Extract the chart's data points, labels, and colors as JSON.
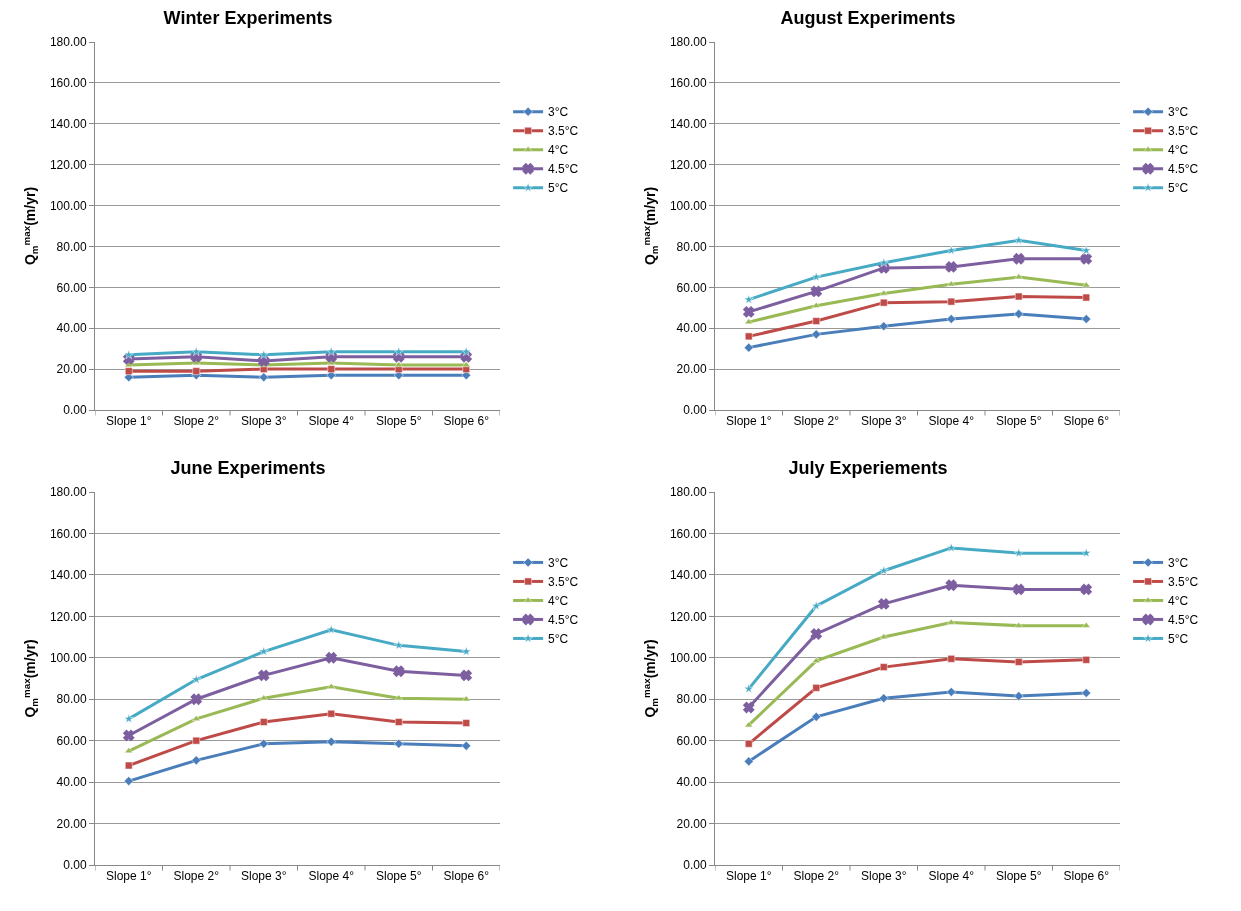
{
  "chart_data": [
    {
      "type": "line",
      "title": "Winter Experiments",
      "ylabel": "Q$_{m}$$^{max}$(m/yr)",
      "categories": [
        "Slope 1°",
        "Slope 2°",
        "Slope 3°",
        "Slope 4°",
        "Slope 5°",
        "Slope 6°"
      ],
      "ylim": [
        0,
        180
      ],
      "yticks": [
        {
          "value": 0,
          "label": "0.00"
        },
        {
          "value": 20,
          "label": "20.00"
        },
        {
          "value": 40,
          "label": "40.00"
        },
        {
          "value": 60,
          "label": "60.00"
        },
        {
          "value": 80,
          "label": "80.00"
        },
        {
          "value": 100,
          "label": "100.00"
        },
        {
          "value": 120,
          "label": "120.00"
        },
        {
          "value": 140,
          "label": "140.00"
        },
        {
          "value": 160,
          "label": "160.00"
        },
        {
          "value": 180,
          "label": "180.00"
        }
      ],
      "grid": "y",
      "legend": "right",
      "series": [
        {
          "name": "3°C",
          "color": "#4a7ebb",
          "marker": "diamond",
          "values": [
            16,
            17,
            16,
            17,
            17,
            17
          ]
        },
        {
          "name": "3.5°C",
          "color": "#be4b48",
          "marker": "square",
          "values": [
            19,
            19,
            20,
            20,
            20,
            20
          ]
        },
        {
          "name": "4°C",
          "color": "#98b954",
          "marker": "triangle",
          "values": [
            22,
            23,
            22,
            23,
            22,
            22
          ]
        },
        {
          "name": "4.5°C",
          "color": "#7d5fa0",
          "marker": "cross",
          "values": [
            25,
            26,
            24,
            26,
            26,
            26
          ]
        },
        {
          "name": "5°C",
          "color": "#46aac5",
          "marker": "star",
          "values": [
            27,
            28.5,
            27,
            28.5,
            28.5,
            28.5
          ]
        }
      ]
    },
    {
      "type": "line",
      "title": "August Experiments",
      "ylabel": "Q$_{m}$$^{max}$(m/yr)",
      "categories": [
        "Slope 1°",
        "Slope 2°",
        "Slope 3°",
        "Slope 4°",
        "Slope 5°",
        "Slope 6°"
      ],
      "ylim": [
        0,
        180
      ],
      "yticks": [
        {
          "value": 0,
          "label": "0.00"
        },
        {
          "value": 20,
          "label": "20.00"
        },
        {
          "value": 40,
          "label": "40.00"
        },
        {
          "value": 60,
          "label": "60.00"
        },
        {
          "value": 80,
          "label": "80.00"
        },
        {
          "value": 100,
          "label": "100.00"
        },
        {
          "value": 120,
          "label": "120.00"
        },
        {
          "value": 140,
          "label": "140.00"
        },
        {
          "value": 160,
          "label": "160.00"
        },
        {
          "value": 180,
          "label": "180.00"
        }
      ],
      "grid": "y",
      "legend": "right",
      "series": [
        {
          "name": "3°C",
          "color": "#4a7ebb",
          "marker": "diamond",
          "values": [
            30.5,
            37,
            41,
            44.5,
            47,
            44.5
          ]
        },
        {
          "name": "3.5°C",
          "color": "#be4b48",
          "marker": "square",
          "values": [
            36,
            43.5,
            52.5,
            53,
            55.5,
            55
          ]
        },
        {
          "name": "4°C",
          "color": "#98b954",
          "marker": "triangle",
          "values": [
            43,
            51,
            57,
            61.5,
            65,
            61
          ]
        },
        {
          "name": "4.5°C",
          "color": "#7d5fa0",
          "marker": "cross",
          "values": [
            48,
            58,
            69.5,
            70,
            74,
            74
          ]
        },
        {
          "name": "5°C",
          "color": "#46aac5",
          "marker": "star",
          "values": [
            54,
            65,
            72,
            78,
            83,
            78
          ]
        }
      ]
    },
    {
      "type": "line",
      "title": "June Experiments",
      "ylabel": "Q$_{m}$$^{max}$(m/yr)",
      "categories": [
        "Slope 1°",
        "Slope 2°",
        "Slope 3°",
        "Slope 4°",
        "Slope 5°",
        "Slope 6°"
      ],
      "ylim": [
        0,
        180
      ],
      "yticks": [
        {
          "value": 0,
          "label": "0.00"
        },
        {
          "value": 20,
          "label": "20.00"
        },
        {
          "value": 40,
          "label": "40.00"
        },
        {
          "value": 60,
          "label": "60.00"
        },
        {
          "value": 80,
          "label": "80.00"
        },
        {
          "value": 100,
          "label": "100.00"
        },
        {
          "value": 120,
          "label": "120.00"
        },
        {
          "value": 140,
          "label": "140.00"
        },
        {
          "value": 160,
          "label": "160.00"
        },
        {
          "value": 180,
          "label": "180.00"
        }
      ],
      "grid": "y",
      "legend": "right",
      "series": [
        {
          "name": "3°C",
          "color": "#4a7ebb",
          "marker": "diamond",
          "values": [
            40.5,
            50.5,
            58.5,
            59.5,
            58.5,
            57.5
          ]
        },
        {
          "name": "3.5°C",
          "color": "#be4b48",
          "marker": "square",
          "values": [
            48,
            60,
            69,
            73,
            69,
            68.5
          ]
        },
        {
          "name": "4°C",
          "color": "#98b954",
          "marker": "triangle",
          "values": [
            55,
            70.5,
            80.5,
            86,
            80.5,
            80
          ]
        },
        {
          "name": "4.5°C",
          "color": "#7d5fa0",
          "marker": "cross",
          "values": [
            62.5,
            80,
            91.5,
            100,
            93.5,
            91.5
          ]
        },
        {
          "name": "5°C",
          "color": "#46aac5",
          "marker": "star",
          "values": [
            70.5,
            89.5,
            103,
            113.5,
            106,
            103
          ]
        }
      ]
    },
    {
      "type": "line",
      "title": "July Experiements",
      "ylabel": "Q$_{m}$$^{max}$(m/yr)",
      "categories": [
        "Slope 1°",
        "Slope 2°",
        "Slope 3°",
        "Slope 4°",
        "Slope 5°",
        "Slope 6°"
      ],
      "ylim": [
        0,
        180
      ],
      "yticks": [
        {
          "value": 0,
          "label": "0.00"
        },
        {
          "value": 20,
          "label": "20.00"
        },
        {
          "value": 40,
          "label": "40.00"
        },
        {
          "value": 60,
          "label": "60.00"
        },
        {
          "value": 80,
          "label": "80.00"
        },
        {
          "value": 100,
          "label": "100.00"
        },
        {
          "value": 120,
          "label": "120.00"
        },
        {
          "value": 140,
          "label": "140.00"
        },
        {
          "value": 160,
          "label": "160.00"
        },
        {
          "value": 180,
          "label": "180.00"
        }
      ],
      "grid": "y",
      "legend": "right",
      "series": [
        {
          "name": "3°C",
          "color": "#4a7ebb",
          "marker": "diamond",
          "values": [
            50,
            71.5,
            80.5,
            83.5,
            81.5,
            83
          ]
        },
        {
          "name": "3.5°C",
          "color": "#be4b48",
          "marker": "square",
          "values": [
            58.5,
            85.5,
            95.5,
            99.5,
            98,
            99
          ]
        },
        {
          "name": "4°C",
          "color": "#98b954",
          "marker": "triangle",
          "values": [
            67.5,
            98.5,
            110,
            117,
            115.5,
            115.5
          ]
        },
        {
          "name": "4.5°C",
          "color": "#7d5fa0",
          "marker": "cross",
          "values": [
            76,
            111.5,
            126,
            135,
            133,
            133
          ]
        },
        {
          "name": "5°C",
          "color": "#46aac5",
          "marker": "star",
          "values": [
            85,
            125,
            142,
            153,
            150.5,
            150.5
          ]
        }
      ]
    }
  ]
}
